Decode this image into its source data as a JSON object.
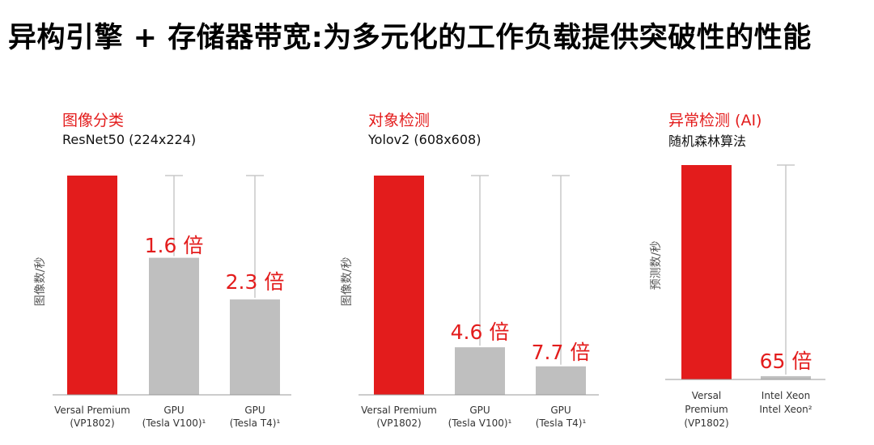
{
  "page": {
    "title": "异构引擎 + 存储器带宽:为多元化的工作负载提供突破性的性能"
  },
  "chart_data": [
    {
      "type": "bar",
      "title": "图像分类",
      "subtitle": "ResNet50 (224x224)",
      "ylabel": "图像数/秒",
      "ylim": [
        0,
        1
      ],
      "reference_line": true,
      "categories": [
        [
          "Versal Premium",
          "(VP1802)"
        ],
        [
          "GPU",
          "(Tesla V100)¹"
        ],
        [
          "GPU",
          "(Tesla T4)¹"
        ]
      ],
      "values": [
        1.0,
        0.625,
        0.435
      ],
      "annotations": [
        "",
        "1.6 倍",
        "2.3 倍"
      ],
      "colors": [
        "#e31c1c",
        "#bfbfbf",
        "#bfbfbf"
      ]
    },
    {
      "type": "bar",
      "title": "对象检测",
      "subtitle": "Yolov2 (608x608)",
      "ylabel": "图像数/秒",
      "ylim": [
        0,
        1
      ],
      "reference_line": true,
      "categories": [
        [
          "Versal Premium",
          "(VP1802)"
        ],
        [
          "GPU",
          "(Tesla V100)¹"
        ],
        [
          "GPU",
          "(Tesla T4)¹"
        ]
      ],
      "values": [
        1.0,
        0.217,
        0.13
      ],
      "annotations": [
        "",
        "4.6 倍",
        "7.7 倍"
      ],
      "colors": [
        "#e31c1c",
        "#bfbfbf",
        "#bfbfbf"
      ]
    },
    {
      "type": "bar",
      "title": "异常检测 (AI)",
      "subtitle": "随机森林算法",
      "ylabel": "预测数/秒",
      "ylim": [
        0,
        1
      ],
      "reference_line": true,
      "categories": [
        [
          "Versal",
          "Premium",
          "(VP1802)"
        ],
        [
          "Intel Xeon",
          "Intel Xeon²"
        ]
      ],
      "values": [
        1.0,
        0.0154
      ],
      "annotations": [
        "",
        "65 倍"
      ],
      "colors": [
        "#e31c1c",
        "#bfbfbf"
      ]
    }
  ]
}
